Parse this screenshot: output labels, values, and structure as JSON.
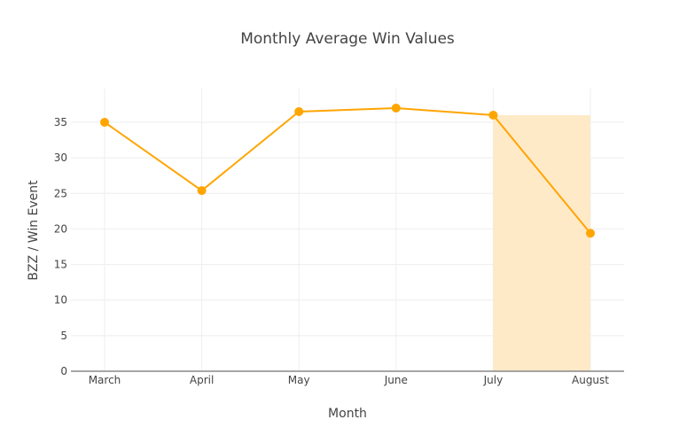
{
  "chart_data": {
    "type": "line",
    "title": "Monthly Average Win Values",
    "xlabel": "Month",
    "ylabel": "BZZ / Win Event",
    "categories": [
      "March",
      "April",
      "May",
      "June",
      "July",
      "August"
    ],
    "series": [
      {
        "name": "Average Win Value",
        "values": [
          35.0,
          25.4,
          36.5,
          37.0,
          36.0,
          19.4
        ],
        "color": "#FFA500"
      }
    ],
    "ylim": [
      0,
      39.7
    ],
    "yticks": [
      0,
      5,
      10,
      15,
      20,
      25,
      30,
      35
    ],
    "grid": true,
    "legend": "none",
    "highlight_region": {
      "from": "July",
      "to": "August",
      "color": "#FFE8C2"
    }
  }
}
